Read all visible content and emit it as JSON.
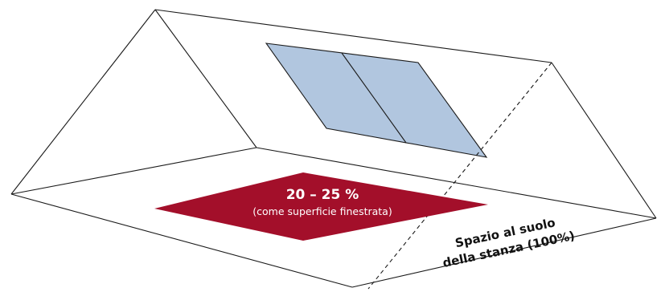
{
  "window_area": {
    "percentage": "20 – 25 %",
    "note": "(come superficie finestrata)"
  },
  "floor": {
    "label_line1": "Spazio al suolo",
    "label_line2": "della stanza (100%)"
  },
  "colors": {
    "window_fill": "#b1c6df",
    "highlight_area": "#a30f2a",
    "outline": "#1a1a1a"
  }
}
